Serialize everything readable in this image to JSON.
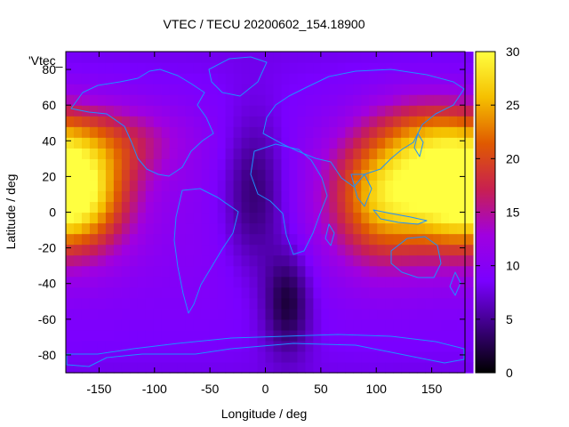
{
  "chart_data": {
    "type": "heatmap",
    "title": "VTEC / TECU 20200602_154.18900",
    "xlabel": "Longitude / deg",
    "ylabel": "Latitude / deg",
    "inset_label": "'Vtec_",
    "xlim": [
      -180,
      180
    ],
    "ylim": [
      -90,
      90
    ],
    "x_ticks": [
      "-150",
      "-100",
      "-50",
      "0",
      "50",
      "100",
      "150"
    ],
    "x_tick_values": [
      -150,
      -100,
      -50,
      0,
      50,
      100,
      150
    ],
    "y_ticks": [
      "-80",
      "-60",
      "-40",
      "-20",
      "0",
      "20",
      "40",
      "60",
      "80"
    ],
    "y_tick_values": [
      -80,
      -60,
      -40,
      -20,
      0,
      20,
      40,
      60,
      80
    ],
    "colorbar": {
      "range": [
        0,
        30
      ],
      "ticks": [
        "0",
        "5",
        "10",
        "15",
        "20",
        "25",
        "30"
      ],
      "tick_values": [
        0,
        5,
        10,
        15,
        20,
        25,
        30
      ],
      "colormap": [
        "#000000",
        "#3c0080",
        "#7a00ff",
        "#a000e0",
        "#c82050",
        "#e05a00",
        "#f5c000",
        "#ffff40"
      ]
    },
    "grid": false,
    "coastline_color": "#1e90ff",
    "features": [
      {
        "lon": -170,
        "lat": 10,
        "value": 24,
        "spread_lon": 32,
        "spread_lat": 22
      },
      {
        "lon": 140,
        "lat": 15,
        "value": 22,
        "spread_lon": 45,
        "spread_lat": 25
      },
      {
        "lon": 100,
        "lat": 5,
        "value": 16,
        "spread_lon": 30,
        "spread_lat": 25
      },
      {
        "lon": -130,
        "lat": 40,
        "value": 14,
        "spread_lon": 40,
        "spread_lat": 15
      },
      {
        "lon": 150,
        "lat": 45,
        "value": 14,
        "spread_lon": 35,
        "spread_lat": 15
      },
      {
        "lon": 20,
        "lat": -50,
        "value": 1,
        "spread_lon": 15,
        "spread_lat": 20
      },
      {
        "lon": -10,
        "lat": 10,
        "value": 2,
        "spread_lon": 20,
        "spread_lat": 30
      }
    ]
  }
}
